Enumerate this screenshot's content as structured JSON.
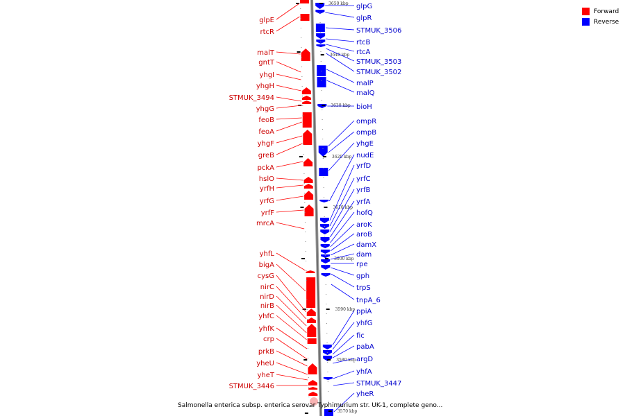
{
  "legend": {
    "forward_label": "Forward",
    "reverse_label": "Reverse",
    "forward_color": "#ff0000",
    "reverse_color": "#0000ff"
  },
  "caption": "Salmonella enterica subsp. enterica serovar Typhimurium str. UK-1, complete geno...",
  "scale_ticks": [
    "3650 kbp",
    "3640 kbp",
    "3630 kbp",
    "3620 kbp",
    "3610 kbp",
    "3600 kbp",
    "3590 kbp",
    "3580 kbp",
    "3570 kbp"
  ],
  "forward_genes": [
    "glpE",
    "rtcR",
    "malT",
    "gntT",
    "yhgI",
    "yhgH",
    "STMUK_3494",
    "yhgG",
    "feoB",
    "feoA",
    "yhgF",
    "greB",
    "pckA",
    "hslO",
    "yrfH",
    "yrfG",
    "yrfF",
    "mrcA",
    "yhfL",
    "bigA",
    "cysG",
    "nirC",
    "nirD",
    "nirB",
    "yhfC",
    "yhfK",
    "crp",
    "prkB",
    "yheU",
    "yheT",
    "STMUK_3446"
  ],
  "reverse_genes": [
    "glpG",
    "glpR",
    "STMUK_3506",
    "rtcB",
    "rtcA",
    "STMUK_3503",
    "STMUK_3502",
    "malP",
    "malQ",
    "bioH",
    "ompR",
    "ompB",
    "yhgE",
    "nudE",
    "yrfD",
    "yrfC",
    "yrfB",
    "yrfA",
    "hofQ",
    "aroK",
    "aroB",
    "damX",
    "dam",
    "rpe",
    "gph",
    "trpS",
    "tnpA_6",
    "ppiA",
    "yhfG",
    "fic",
    "pabA",
    "argD",
    "yhfA",
    "STMUK_3447",
    "yheR"
  ]
}
